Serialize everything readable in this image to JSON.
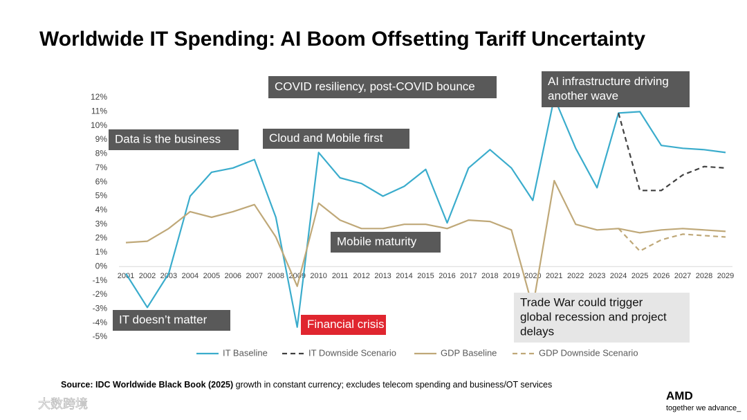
{
  "chart_data": {
    "type": "line",
    "title": "Worldwide IT Spending: AI Boom Offsetting Tariff Uncertainty",
    "categories": [
      "2001",
      "2002",
      "2003",
      "2004",
      "2005",
      "2006",
      "2007",
      "2008",
      "2009",
      "2010",
      "2011",
      "2012",
      "2013",
      "2014",
      "2015",
      "2016",
      "2017",
      "2018",
      "2019",
      "2020",
      "2021",
      "2022",
      "2023",
      "2024",
      "2025",
      "2026",
      "2027",
      "2028",
      "2029"
    ],
    "series": [
      {
        "name": "IT Baseline",
        "color": "#3aaccc",
        "dashed": false,
        "values": [
          -0.5,
          -2.9,
          -0.5,
          5.0,
          6.7,
          7.0,
          7.6,
          3.5,
          -4.3,
          8.1,
          6.3,
          5.9,
          5.0,
          5.7,
          6.9,
          3.1,
          7.0,
          8.3,
          7.0,
          4.7,
          12.0,
          8.4,
          5.6,
          10.9,
          11.0,
          8.6,
          8.4,
          8.3,
          8.1
        ]
      },
      {
        "name": "IT Downside Scenario",
        "color": "#404040",
        "dashed": true,
        "values": [
          null,
          null,
          null,
          null,
          null,
          null,
          null,
          null,
          null,
          null,
          null,
          null,
          null,
          null,
          null,
          null,
          null,
          null,
          null,
          null,
          null,
          null,
          null,
          10.9,
          5.4,
          5.4,
          6.5,
          7.1,
          7.0
        ]
      },
      {
        "name": "GDP Baseline",
        "color": "#bfa878",
        "dashed": false,
        "values": [
          1.7,
          1.8,
          2.7,
          3.9,
          3.5,
          3.9,
          4.4,
          2.1,
          -1.4,
          4.5,
          3.3,
          2.7,
          2.7,
          3.0,
          3.0,
          2.7,
          3.3,
          3.2,
          2.6,
          -2.9,
          6.1,
          3.0,
          2.6,
          2.7,
          2.4,
          2.6,
          2.7,
          2.6,
          2.5
        ]
      },
      {
        "name": "GDP Downside Scenario",
        "color": "#bfa878",
        "dashed": true,
        "values": [
          null,
          null,
          null,
          null,
          null,
          null,
          null,
          null,
          null,
          null,
          null,
          null,
          null,
          null,
          null,
          null,
          null,
          null,
          null,
          null,
          null,
          null,
          null,
          2.7,
          1.1,
          1.9,
          2.3,
          2.2,
          2.1
        ]
      }
    ],
    "ylim": [
      -5,
      12
    ],
    "yticks": [
      {
        "value": -5,
        "label": "-5%"
      },
      {
        "value": -4,
        "label": "-4%"
      },
      {
        "value": -3,
        "label": "-3%"
      },
      {
        "value": -2,
        "label": "-2%"
      },
      {
        "value": -1,
        "label": "-1%"
      },
      {
        "value": 0,
        "label": "0%"
      },
      {
        "value": 1,
        "label": "1%"
      },
      {
        "value": 2,
        "label": "2%"
      },
      {
        "value": 3,
        "label": "3%"
      },
      {
        "value": 4,
        "label": "4%"
      },
      {
        "value": 5,
        "label": "5%"
      },
      {
        "value": 6,
        "label": "6%"
      },
      {
        "value": 7,
        "label": "7%"
      },
      {
        "value": 8,
        "label": "8%"
      },
      {
        "value": 9,
        "label": "9%"
      },
      {
        "value": 10,
        "label": "10%"
      },
      {
        "value": 11,
        "label": "11%"
      },
      {
        "value": 12,
        "label": "12%"
      }
    ],
    "grid": false,
    "annotations": [
      {
        "lines": [
          "Data is the business"
        ],
        "style": "dark"
      },
      {
        "lines": [
          "COVID resiliency, post-COVID bounce"
        ],
        "style": "dark"
      },
      {
        "lines": [
          "Cloud and Mobile first"
        ],
        "style": "dark"
      },
      {
        "lines": [
          "AI infrastructure driving",
          "another wave"
        ],
        "style": "dark"
      },
      {
        "lines": [
          "Mobile maturity"
        ],
        "style": "dark"
      },
      {
        "lines": [
          "IT doesn’t matter"
        ],
        "style": "dark"
      },
      {
        "lines": [
          "Financial crisis"
        ],
        "style": "red"
      },
      {
        "lines": [
          "Trade War could trigger",
          "global recession and project",
          "delays"
        ],
        "style": "light"
      }
    ],
    "source_bold": "Source: IDC Worldwide Black Book (2025)",
    "source_rest": " growth in constant currency; excludes telecom spending and business/OT services",
    "logo": "AMD",
    "tagline": "together we advance_",
    "watermark": "大数跨境"
  }
}
